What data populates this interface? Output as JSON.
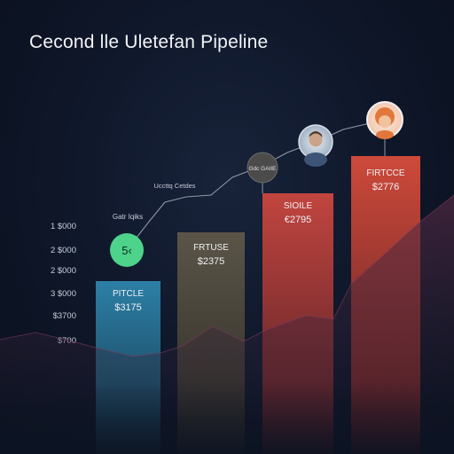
{
  "title": "Cecond lle Uletefan Pipeline",
  "chart_data": {
    "type": "bar",
    "title": "Cecond lle Uletefan Pipeline",
    "xlabel": "",
    "ylabel": "",
    "y_ticks": [
      "1 $000",
      "2 $000",
      "2 $000",
      "3 $000",
      "$3700",
      "$700"
    ],
    "categories": [
      "PITCLE",
      "FRTUSE",
      "SIOILE",
      "FIRTCCE"
    ],
    "values": [
      3175,
      2375,
      2795,
      2776
    ],
    "value_labels": [
      "$3175",
      "$2375",
      "€2795",
      "$2776"
    ],
    "bar_colors": [
      [
        "#2d7fa6",
        "#143346"
      ],
      [
        "#5b5548",
        "#2a2823"
      ],
      [
        "#c2453f",
        "#4a1c24"
      ],
      [
        "#cd4a3a",
        "#4e1a22"
      ]
    ],
    "milestones": [
      {
        "label": "5‹",
        "kind": "badge",
        "color": "#4ed38b"
      },
      {
        "label": "Gatr Iqiks",
        "kind": "text"
      },
      {
        "label": "Uccttq Cetdes",
        "kind": "text"
      },
      {
        "label": "Gdc GAIIE",
        "kind": "dot",
        "color": "#4b4b4b"
      },
      {
        "label": "",
        "kind": "avatar-man"
      },
      {
        "label": "",
        "kind": "avatar-woman"
      }
    ],
    "grid": false,
    "legend": "none"
  }
}
